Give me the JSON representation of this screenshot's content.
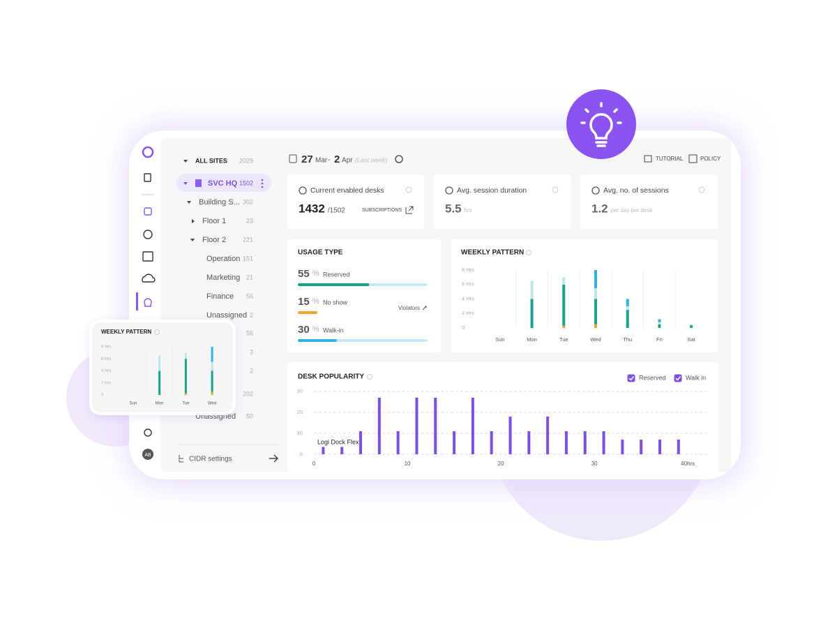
{
  "sidebar": {
    "avatar": "AB"
  },
  "header": {
    "start_day": "27",
    "start_month": "Mar",
    "separator": "-",
    "end_day": "2",
    "end_month": "Apr",
    "range_note": "(Last week)",
    "tutorial": "TUTORIAL",
    "policy": "POLICY"
  },
  "tree": {
    "title": "ALL SITES",
    "title_count": 2029,
    "rows": [
      {
        "label": "SVC HQ",
        "count": 1502
      },
      {
        "label": "Building S...",
        "count": 302
      },
      {
        "label": "Floor 1",
        "count": 23
      },
      {
        "label": "Floor 2",
        "count": 221
      },
      {
        "label": "Operation",
        "count": 151
      },
      {
        "label": "Marketing",
        "count": 21
      },
      {
        "label": "Finance",
        "count": 56
      },
      {
        "label": "Unassigned",
        "count": 2
      },
      {
        "label": null,
        "count": 56
      },
      {
        "label": "...",
        "count": 3
      },
      {
        "label": null,
        "count": 2
      },
      {
        "label": "...",
        "count": 202
      },
      {
        "label": "Unassigned",
        "count": 50
      }
    ],
    "footer": "CIDR settings"
  },
  "kpis": [
    {
      "label": "Current enabled desks",
      "value": 1432,
      "suffix": "/1502",
      "link": "SUBSCRIPTIONS"
    },
    {
      "label": "Avg. session duration",
      "value": 5.5,
      "suffix": "hrs"
    },
    {
      "label": "Avg. no. of sessions",
      "value": 1.2,
      "suffix": "per day per desk"
    }
  ],
  "usage_type": {
    "title": "USAGE TYPE",
    "unit": "%",
    "violators": "Violators",
    "items": [
      {
        "value": 55,
        "label": "Reserved",
        "color": "#1aa38c",
        "track": "#c8ebee"
      },
      {
        "value": 15,
        "label": "No show",
        "color": "#f0a12e"
      },
      {
        "value": 30,
        "label": "Walk-in",
        "color": "#2bb3e3",
        "track": "#c4e9f7"
      }
    ]
  },
  "chart_data": [
    {
      "type": "bar",
      "stacked": true,
      "title": "WEEKLY PATTERN",
      "categories": [
        "Sun",
        "Mon",
        "Tue",
        "Wed",
        "Thu",
        "Fri",
        "Sat"
      ],
      "series": [
        {
          "color": "#f0a12e",
          "values": [
            0,
            0,
            0.3,
            0.5,
            0,
            0,
            0
          ]
        },
        {
          "color": "#1aa38c",
          "values": [
            0,
            4,
            5.7,
            3.5,
            2.5,
            0.5,
            0.4
          ]
        },
        {
          "color": "#bfe5e0",
          "values": [
            0,
            2.5,
            1,
            1.5,
            0.5,
            0.3,
            0
          ]
        },
        {
          "color": "#2bb3e3",
          "values": [
            0,
            0,
            0,
            2.5,
            1,
            0.4,
            0
          ]
        }
      ],
      "ylim": [
        0,
        8
      ],
      "yticks": [
        0,
        {
          "value": 2,
          "label": "2 Hrs"
        },
        {
          "value": 4,
          "label": "4 Hrs"
        },
        {
          "value": 6,
          "label": "6 Hrs"
        },
        {
          "value": 8,
          "label": "8 Hrs"
        }
      ]
    },
    {
      "type": "bar",
      "title": "DESK POPULARITY",
      "x": [
        1,
        3,
        5,
        7,
        9,
        11,
        13,
        15,
        17,
        19,
        21,
        23,
        25,
        27,
        29,
        31,
        33,
        35,
        37,
        39
      ],
      "series": [
        {
          "color": "#7d4fe0",
          "values": [
            3.5,
            3.5,
            11,
            27,
            11,
            27,
            27,
            11,
            27,
            11,
            18,
            11,
            18,
            11,
            11,
            11,
            7,
            7,
            7,
            7
          ]
        }
      ],
      "xlim": [
        0,
        42
      ],
      "xticks": [
        0,
        10,
        20,
        30,
        {
          "value": 40,
          "label": "40hrs"
        }
      ],
      "ylim": [
        0,
        30
      ],
      "yticks": [
        0,
        10,
        20,
        30
      ],
      "grid": true,
      "filters": [
        {
          "name": "Reserved",
          "checked": true
        },
        {
          "name": "Walk in",
          "checked": true
        }
      ],
      "annotation": "Logi Dock Flex"
    },
    {
      "type": "bar",
      "stacked": true,
      "title": "WEEKLY PATTERN",
      "categories": [
        "Sun",
        "Mon",
        "Tue",
        "Wed"
      ],
      "series": [
        {
          "color": "#f0a12e",
          "values": [
            0,
            0,
            0.3,
            0.5
          ]
        },
        {
          "color": "#1aa38c",
          "values": [
            0,
            4,
            5.7,
            3.5
          ]
        },
        {
          "color": "#bfe5e0",
          "values": [
            0,
            2.5,
            1,
            1.5
          ]
        },
        {
          "color": "#2bb3e3",
          "values": [
            0,
            0,
            0,
            2.5
          ]
        }
      ],
      "ylim": [
        0,
        8
      ],
      "yticks": [
        0,
        {
          "value": 2,
          "label": "2 Hrs"
        },
        {
          "value": 4,
          "label": "4 Hrs"
        },
        {
          "value": 6,
          "label": "6 Hrs"
        },
        {
          "value": 8,
          "label": "8 Hrs"
        }
      ]
    }
  ]
}
